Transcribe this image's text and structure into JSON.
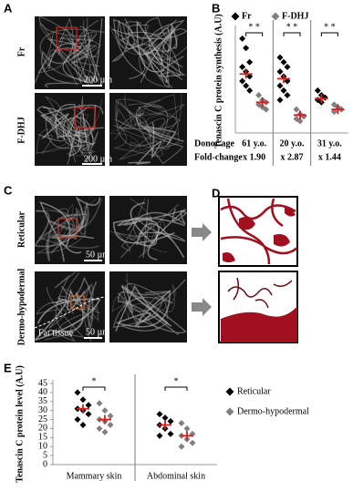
{
  "panels": {
    "A": {
      "label": "A",
      "rows": [
        "Fr",
        "F-DHJ"
      ],
      "scale_bar": "200 µm"
    },
    "C": {
      "label": "C",
      "rows": [
        "Reticular",
        "Dermo-hypodermal"
      ],
      "scale_bar": "50 µm",
      "annotation": "Fat tissue"
    },
    "D": {
      "label": "D"
    }
  },
  "chart_data": [
    {
      "type": "strip",
      "panel_label": "B",
      "ylabel": "Tenascin C protein synthesis (A.U)",
      "row_labels": [
        "Donor age",
        "Fold-change"
      ],
      "categories": [
        "61 y.o.",
        "20 y.o.",
        "31 y.o."
      ],
      "fold_change": [
        "x 1.90",
        "x 2.87",
        "x 1.44"
      ],
      "significance": [
        "* *",
        "* *",
        "* *"
      ],
      "ylim": [
        0,
        22
      ],
      "series": [
        {
          "name": "Fr",
          "color": "#000000",
          "values": [
            [
              20,
              18,
              15,
              14,
              13,
              12,
              11,
              10,
              9
            ],
            [
              16,
              15,
              14,
              13,
              12,
              11,
              10,
              9,
              8,
              7
            ],
            [
              9,
              8,
              7.5,
              7,
              6.5
            ]
          ],
          "means": [
            12.5,
            11.5,
            7.3
          ]
        },
        {
          "name": "F-DHJ",
          "color": "#808080",
          "values": [
            [
              8,
              7,
              6.5,
              6,
              5.5,
              5
            ],
            [
              5,
              4,
              3.5,
              3,
              2.5
            ],
            [
              6,
              5.5,
              5,
              4.5
            ]
          ],
          "means": [
            6.5,
            3.8,
            5
          ]
        }
      ]
    },
    {
      "type": "strip",
      "panel_label": "E",
      "ylabel": "Tenascin C protein level (A.U)",
      "categories": [
        "Mammary skin",
        "Abdominal skin"
      ],
      "significance": [
        "*",
        "*"
      ],
      "ylim": [
        0,
        45
      ],
      "yticks": [
        0,
        5,
        10,
        15,
        20,
        25,
        30,
        35,
        40,
        45
      ],
      "series": [
        {
          "name": "Reticular",
          "color": "#000000",
          "values": [
            [
              40,
              36,
              33,
              31,
              30,
              28,
              25,
              22
            ],
            [
              28,
              26,
              24,
              22,
              20,
              17,
              16
            ]
          ],
          "means": [
            31,
            22
          ]
        },
        {
          "name": "Dermo-hypodermal",
          "color": "#808080",
          "values": [
            [
              34,
              30,
              27,
              25,
              24,
              22,
              20,
              18
            ],
            [
              23,
              20,
              17,
              16,
              14,
              12,
              10
            ]
          ],
          "means": [
            25,
            16
          ]
        }
      ]
    }
  ]
}
